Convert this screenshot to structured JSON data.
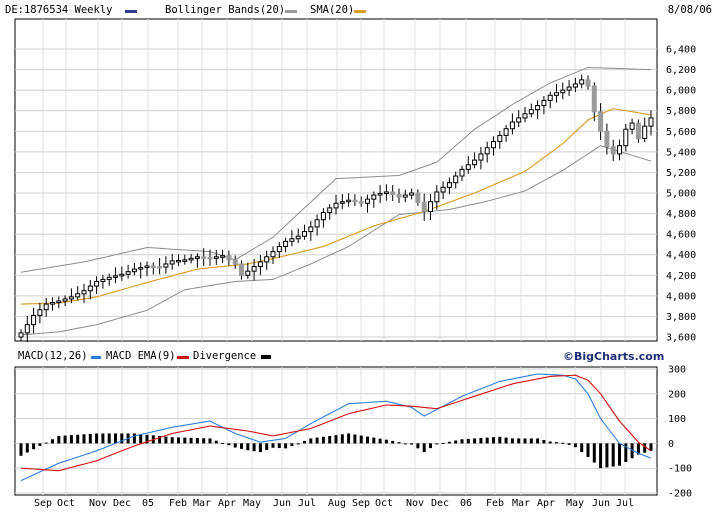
{
  "chart_data": [
    {
      "type": "candlestick",
      "symbol": "DE:1876534",
      "period": "Weekly",
      "date": "8/08/06",
      "legend": [
        {
          "label": "DE:1876534 Weekly",
          "color": "#2f3a8c"
        },
        {
          "label": "Bollinger Bands(20)",
          "color": "#9a9a9a"
        },
        {
          "label": "SMA(20)",
          "color": "#d9a02c"
        }
      ],
      "ylim": [
        3600,
        6400
      ],
      "y_ticks": [
        "3,600",
        "3,800",
        "4,000",
        "4,200",
        "4,400",
        "4,600",
        "4,800",
        "5,000",
        "5,200",
        "5,400",
        "5,600",
        "5,800",
        "6,000",
        "6,200",
        "6,400"
      ],
      "x_ticks": [
        "Sep",
        "Oct",
        "Nov",
        "Dec",
        "05",
        "Feb",
        "Mar",
        "Apr",
        "May",
        "Jun",
        "Jul",
        "Aug",
        "Sep",
        "Oct",
        "Nov",
        "Dec",
        "06",
        "Feb",
        "Mar",
        "Apr",
        "May",
        "Jun",
        "Jul"
      ],
      "close_anchors": [
        [
          0,
          3640
        ],
        [
          1,
          3720
        ],
        [
          2,
          3810
        ],
        [
          4,
          3920
        ],
        [
          6,
          3950
        ],
        [
          8,
          3990
        ],
        [
          10,
          4050
        ],
        [
          12,
          4140
        ],
        [
          14,
          4180
        ],
        [
          16,
          4210
        ],
        [
          18,
          4260
        ],
        [
          20,
          4290
        ],
        [
          22,
          4280
        ],
        [
          24,
          4340
        ],
        [
          26,
          4350
        ],
        [
          28,
          4380
        ],
        [
          30,
          4370
        ],
        [
          32,
          4390
        ],
        [
          34,
          4310
        ],
        [
          35,
          4200
        ],
        [
          36,
          4240
        ],
        [
          38,
          4330
        ],
        [
          40,
          4430
        ],
        [
          42,
          4530
        ],
        [
          44,
          4580
        ],
        [
          46,
          4670
        ],
        [
          48,
          4810
        ],
        [
          50,
          4900
        ],
        [
          52,
          4930
        ],
        [
          54,
          4900
        ],
        [
          56,
          4980
        ],
        [
          58,
          5010
        ],
        [
          60,
          4960
        ],
        [
          62,
          5000
        ],
        [
          64,
          4820
        ],
        [
          66,
          5010
        ],
        [
          68,
          5100
        ],
        [
          70,
          5230
        ],
        [
          72,
          5320
        ],
        [
          74,
          5440
        ],
        [
          76,
          5560
        ],
        [
          78,
          5690
        ],
        [
          80,
          5770
        ],
        [
          82,
          5850
        ],
        [
          84,
          5950
        ],
        [
          86,
          6000
        ],
        [
          88,
          6060
        ],
        [
          89,
          6100
        ],
        [
          90,
          6040
        ],
        [
          91,
          5790
        ],
        [
          92,
          5600
        ],
        [
          93,
          5450
        ],
        [
          94,
          5380
        ],
        [
          95,
          5460
        ],
        [
          96,
          5620
        ],
        [
          97,
          5680
        ],
        [
          98,
          5530
        ],
        [
          99,
          5650
        ],
        [
          100,
          5730
        ]
      ],
      "bollinger_upper_anchors": [
        [
          0,
          4230
        ],
        [
          10,
          4330
        ],
        [
          20,
          4470
        ],
        [
          30,
          4430
        ],
        [
          34,
          4350
        ],
        [
          40,
          4570
        ],
        [
          50,
          5140
        ],
        [
          60,
          5170
        ],
        [
          66,
          5300
        ],
        [
          72,
          5620
        ],
        [
          78,
          5860
        ],
        [
          84,
          6070
        ],
        [
          90,
          6220
        ],
        [
          100,
          6200
        ]
      ],
      "bollinger_lower_anchors": [
        [
          0,
          3620
        ],
        [
          6,
          3650
        ],
        [
          12,
          3720
        ],
        [
          20,
          3860
        ],
        [
          26,
          4060
        ],
        [
          34,
          4140
        ],
        [
          40,
          4160
        ],
        [
          46,
          4310
        ],
        [
          52,
          4480
        ],
        [
          60,
          4790
        ],
        [
          68,
          4840
        ],
        [
          74,
          4920
        ],
        [
          80,
          5020
        ],
        [
          86,
          5220
        ],
        [
          92,
          5460
        ],
        [
          100,
          5310
        ]
      ],
      "sma_anchors": [
        [
          0,
          3920
        ],
        [
          6,
          3930
        ],
        [
          12,
          3990
        ],
        [
          20,
          4130
        ],
        [
          28,
          4260
        ],
        [
          36,
          4310
        ],
        [
          42,
          4390
        ],
        [
          48,
          4480
        ],
        [
          56,
          4680
        ],
        [
          64,
          4820
        ],
        [
          72,
          5000
        ],
        [
          80,
          5210
        ],
        [
          86,
          5480
        ],
        [
          90,
          5710
        ],
        [
          94,
          5820
        ],
        [
          100,
          5760
        ]
      ]
    },
    {
      "type": "macd",
      "legend": [
        {
          "label": "MACD(12,26)",
          "color": "#000000"
        },
        {
          "label": "MACD EMA(9)",
          "color": "#2f7fd9"
        },
        {
          "label": "Divergence",
          "color": "#d11010"
        },
        {
          "label": "",
          "color": "#000000"
        }
      ],
      "brand": "©BigCharts.com",
      "ylim": [
        -200,
        300
      ],
      "y_ticks": [
        "300",
        "200",
        "100",
        "0",
        "-100",
        "-200"
      ],
      "macd_anchors": [
        [
          0,
          -150
        ],
        [
          6,
          -80
        ],
        [
          12,
          -30
        ],
        [
          18,
          30
        ],
        [
          24,
          65
        ],
        [
          30,
          90
        ],
        [
          34,
          40
        ],
        [
          38,
          5
        ],
        [
          42,
          20
        ],
        [
          46,
          80
        ],
        [
          52,
          160
        ],
        [
          58,
          170
        ],
        [
          62,
          145
        ],
        [
          64,
          110
        ],
        [
          70,
          190
        ],
        [
          76,
          250
        ],
        [
          82,
          280
        ],
        [
          86,
          275
        ],
        [
          88,
          260
        ],
        [
          90,
          200
        ],
        [
          92,
          100
        ],
        [
          95,
          0
        ],
        [
          98,
          -40
        ],
        [
          100,
          -60
        ]
      ],
      "signal_anchors": [
        [
          0,
          -100
        ],
        [
          6,
          -110
        ],
        [
          12,
          -70
        ],
        [
          18,
          -10
        ],
        [
          24,
          40
        ],
        [
          30,
          70
        ],
        [
          36,
          50
        ],
        [
          40,
          30
        ],
        [
          46,
          60
        ],
        [
          52,
          120
        ],
        [
          58,
          155
        ],
        [
          62,
          150
        ],
        [
          66,
          140
        ],
        [
          72,
          190
        ],
        [
          78,
          240
        ],
        [
          84,
          270
        ],
        [
          88,
          275
        ],
        [
          90,
          255
        ],
        [
          92,
          200
        ],
        [
          95,
          90
        ],
        [
          98,
          5
        ],
        [
          100,
          -30
        ]
      ]
    }
  ]
}
